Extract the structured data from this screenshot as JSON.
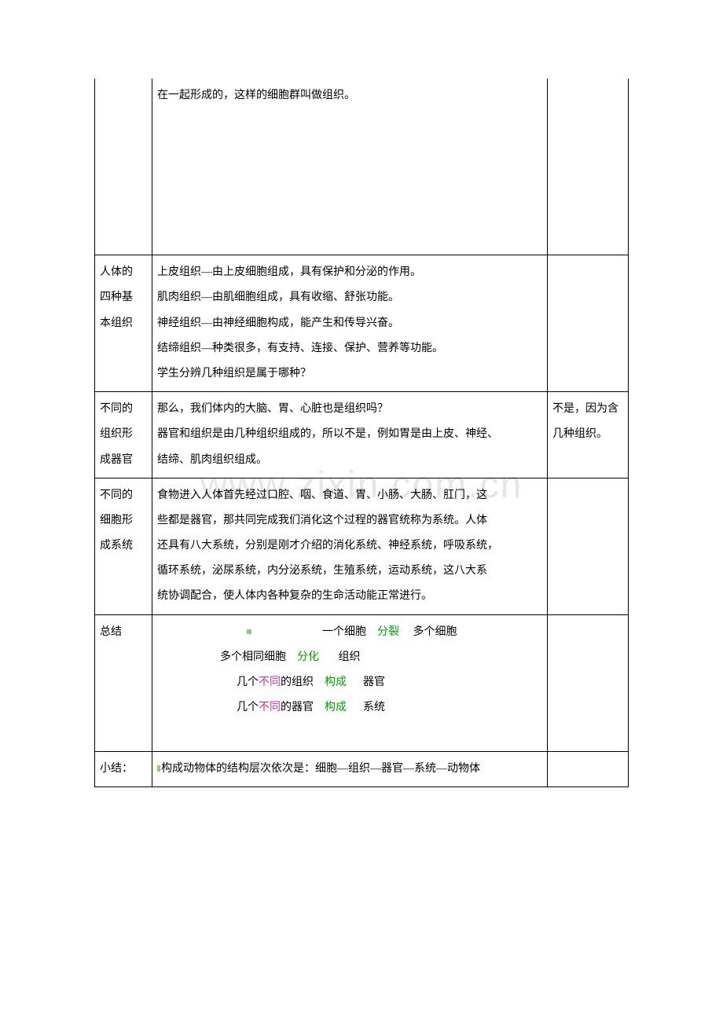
{
  "watermark": "www.zixin.com.cn",
  "row0": {
    "col2_line1": "在一起形成的，这样的细胞群叫做组织。"
  },
  "row1": {
    "col1_l1": "人体的",
    "col1_l2": "四种基",
    "col1_l3": "本组织",
    "col2_l1": "上皮组织—由上皮细胞组成，具有保护和分泌的作用。",
    "col2_l2": "肌肉组织—由肌细胞组成，具有收缩、舒张功能。",
    "col2_l3": "神经组织—由神经细胞构成，能产生和传导兴奋。",
    "col2_l4": "结缔组织—种类很多，有支持、连接、保护、营养等功能。",
    "col2_l5": "学生分辨几种组织是属于哪种？"
  },
  "row2": {
    "col1_l1": "不同的",
    "col1_l2": "组织形",
    "col1_l3": "成器官",
    "col2_l1": "那么，我们体内的大脑、胃、心脏也是组织吗？",
    "col2_l2": "器官和组织是由几种组织组成的，所以不是，例如胃是由上皮、神经、",
    "col2_l3": "结缔、肌肉组织组成。",
    "col3_l1": "不是，因为含",
    "col3_l2": "几种组织。"
  },
  "row3": {
    "col1_l1": "不同的",
    "col1_l2": "细胞形",
    "col1_l3": "成系统",
    "col2_l1": "食物进入人体首先经过口腔、咽、食道、胃、小肠、大肠、肛门，这",
    "col2_l2": "些都是器官，那共同完成我们消化这个过程的器官统称为系统。人体",
    "col2_l3": "还具有八大系统，分别是刚才介绍的消化系统、神经系统，呼吸系统，",
    "col2_l4": "循环系统，泌尿系统，内分泌系统，生殖系统，运动系统，这八大系",
    "col2_l5": "统协调配合，使人体内各种复杂的生命活动能正常进行。"
  },
  "row4": {
    "col1": "总结",
    "s1_a": "一个细胞",
    "s1_b": "分裂",
    "s1_c": "多个细胞",
    "s2_a": "多个相同细胞",
    "s2_b": "分化",
    "s2_c": "组织",
    "s3_a1": "几个",
    "s3_a2": "不同",
    "s3_a3": "的组织",
    "s3_b": "构成",
    "s3_c": "器官",
    "s4_a1": "几个",
    "s4_a2": "不同",
    "s4_a3": "的器官",
    "s4_b": "构成",
    "s4_c": "系统"
  },
  "row5": {
    "col1": "小结：",
    "col2": "构成动物体的结构层次依次是：细胞—组织—器官—系统—动物体"
  },
  "colors": {
    "green": "#00a000",
    "magenta": "#d030a0",
    "border": "#000000",
    "text": "#000000",
    "watermark": "rgba(210,210,210,0.55)",
    "tinygreen": "#8ad070"
  }
}
